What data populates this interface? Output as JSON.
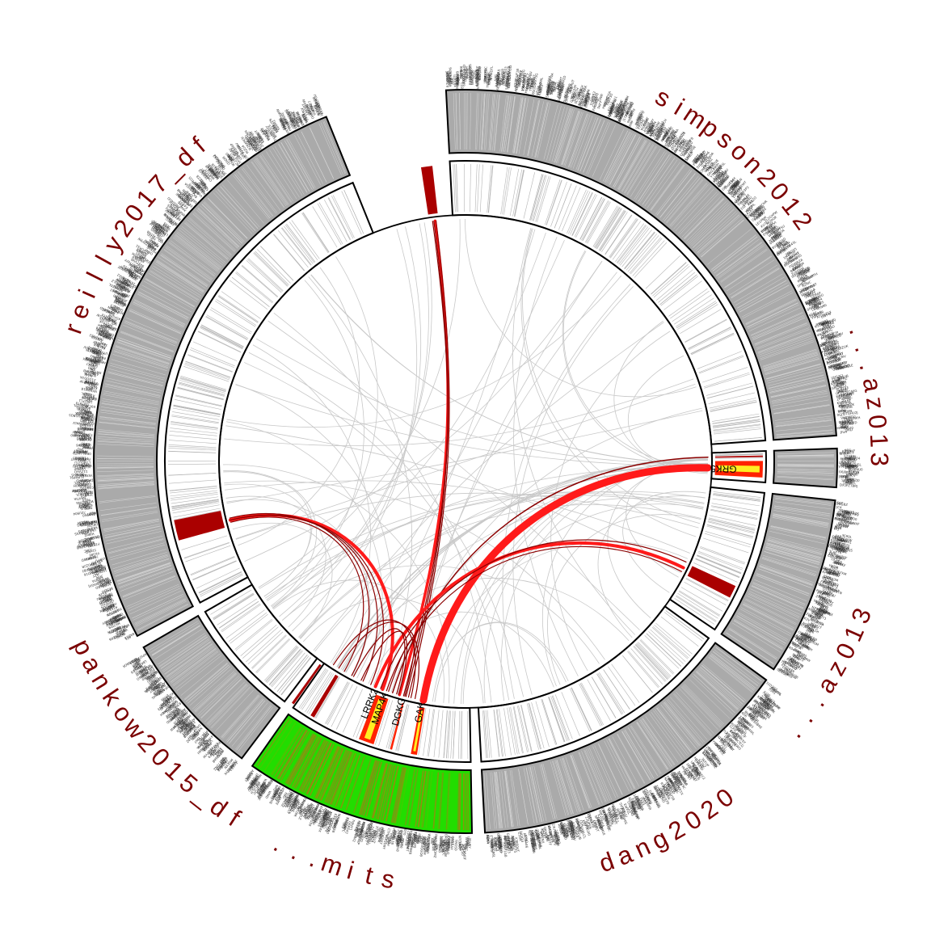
{
  "chart_data": {
    "type": "circos",
    "sectors": [
      {
        "id": "simpson2012",
        "label": "simpson2012",
        "start_deg": -3,
        "end_deg": 86,
        "outer_fill": "#aaaaaa",
        "density": 260
      },
      {
        "id": "s2",
        "label": "...az013",
        "label_start": 8,
        "start_deg": 88,
        "end_deg": 94,
        "outer_fill": "#aaaaaa",
        "density": 22
      },
      {
        "id": "s3",
        "label": "...az013",
        "label_start": 8,
        "start_deg": 96,
        "end_deg": 124,
        "outer_fill": "#aaaaaa",
        "density": 90
      },
      {
        "id": "dang2020",
        "label": "dang2020",
        "start_deg": 126,
        "end_deg": 177,
        "outer_fill": "#aaaaaa",
        "density": 150
      },
      {
        "id": "highlight",
        "label": "...mits",
        "label_start": 4,
        "start_deg": 179,
        "end_deg": 215,
        "outer_fill": "#22dd00",
        "density": 110
      },
      {
        "id": "pankow2015_df",
        "label": "pankow2015_df",
        "start_deg": 217,
        "end_deg": 240,
        "outer_fill": "#aaaaaa",
        "density": 70
      },
      {
        "id": "reilly2017_df",
        "label": "reilly2017_df",
        "label_start": 1,
        "start_deg": 242,
        "end_deg": 338,
        "outer_fill": "#aaaaaa",
        "density": 270
      }
    ],
    "highlighted_genes": [
      "GRK5",
      "GAK",
      "DGKG",
      "MAP4K",
      "LRRK2"
    ],
    "gene_label_angles": [
      91.5,
      190.2,
      194.8,
      199.0,
      201.5
    ],
    "inner_blocks": [
      {
        "angle": -7.5,
        "width": 2.2,
        "color": "#aa0000"
      },
      {
        "angle": 256.6,
        "width": 4.0,
        "color": "#aa0000"
      },
      {
        "angle": 91.5,
        "width": 3.2,
        "color": "#ff2200"
      },
      {
        "angle": 89.0,
        "width": 0.3,
        "color": "#aa0000"
      },
      {
        "angle": 116.0,
        "width": 2.5,
        "color": "#aa0000"
      },
      {
        "angle": 190.0,
        "width": 1.2,
        "color": "#ff2200"
      },
      {
        "angle": 194.5,
        "width": 0.4,
        "color": "#ff2200"
      },
      {
        "angle": 199.5,
        "width": 3.0,
        "color": "#ff2200"
      },
      {
        "angle": 211.0,
        "width": 0.8,
        "color": "#aa0000"
      },
      {
        "angle": 215.5,
        "width": 0.5,
        "color": "#aa0000"
      }
    ],
    "links_highlight": [
      {
        "from": -7.2,
        "to": 195.8,
        "width": 3.5,
        "color": "#ff1a1a"
      },
      {
        "from": -7.8,
        "to": 194.2,
        "width": 1.2,
        "color": "#8b0000"
      },
      {
        "from": -7.5,
        "to": 194.8,
        "width": 1.2,
        "color": "#8b0000"
      },
      {
        "from": -7.0,
        "to": 193.6,
        "width": 1.2,
        "color": "#8b0000"
      },
      {
        "from": 91.5,
        "to": 190.0,
        "width": 9,
        "color": "#ff1a1a"
      },
      {
        "from": 89.0,
        "to": 197.5,
        "width": 1.5,
        "color": "#8b0000"
      },
      {
        "from": 256.0,
        "to": 200.0,
        "width": 4,
        "color": "#ff1a1a"
      },
      {
        "from": 256.0,
        "to": 203.0,
        "width": 1.2,
        "color": "#8b0000"
      },
      {
        "from": 256.0,
        "to": 205.0,
        "width": 1.2,
        "color": "#8b0000"
      },
      {
        "from": 256.5,
        "to": 208.0,
        "width": 1.2,
        "color": "#8b0000"
      },
      {
        "from": 255.5,
        "to": 210.0,
        "width": 1.2,
        "color": "#8b0000"
      },
      {
        "from": 116.0,
        "to": 201.8,
        "width": 4,
        "color": "#ff1a1a"
      },
      {
        "from": 114.5,
        "to": 200.5,
        "width": 1.2,
        "color": "#8b0000"
      },
      {
        "from": 117.0,
        "to": 199.0,
        "width": 1.2,
        "color": "#8b0000"
      },
      {
        "from": 194.5,
        "to": 198.5,
        "width": 1.2,
        "color": "#8b0000"
      },
      {
        "from": 196.0,
        "to": 205.5,
        "width": 1.2,
        "color": "#8b0000"
      },
      {
        "from": 196.5,
        "to": 207.5,
        "width": 1.2,
        "color": "#8b0000"
      },
      {
        "from": 192.0,
        "to": 211.5,
        "width": 1.2,
        "color": "#8b0000"
      },
      {
        "from": 193.0,
        "to": 213.0,
        "width": 1.2,
        "color": "#8b0000"
      }
    ],
    "background_links": 90,
    "colors": {
      "ring_border": "#000000",
      "background_link": "#c8c8c8",
      "track_line": "#b4b4b4",
      "highlight_light": "#ffee22"
    }
  }
}
